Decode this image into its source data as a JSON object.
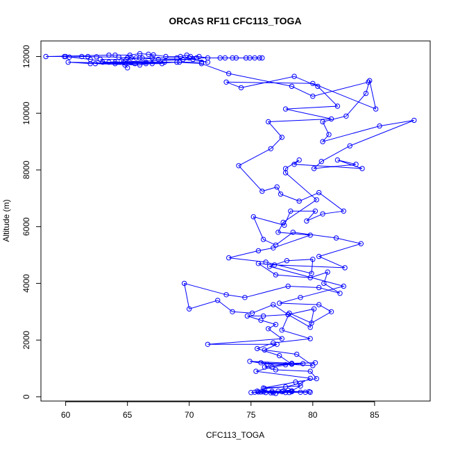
{
  "chart_data": {
    "type": "line",
    "title": "ORCAS RF11 CFC113_TOGA",
    "xlabel": "CFC113_TOGA",
    "ylabel": "Altitude (m)",
    "xlim": [
      58,
      89.5
    ],
    "ylim": [
      -150,
      12550
    ],
    "xticks": [
      60,
      65,
      70,
      75,
      80,
      85
    ],
    "yticks": [
      0,
      2000,
      4000,
      6000,
      8000,
      10000,
      12000
    ],
    "grid": false,
    "markers": "open-circle",
    "series_color": "#0000ff",
    "series": [
      {
        "points": [
          [
            77.0,
            120
          ],
          [
            76.2,
            150
          ],
          [
            75.3,
            160
          ],
          [
            77.8,
            150
          ],
          [
            75.6,
            170
          ],
          [
            76.8,
            140
          ],
          [
            76.0,
            175
          ],
          [
            79.4,
            160
          ],
          [
            76.6,
            140
          ],
          [
            78.1,
            150
          ],
          [
            75.0,
            150
          ],
          [
            79.8,
            160
          ],
          [
            77.5,
            180
          ],
          [
            78.3,
            210
          ],
          [
            79.0,
            380
          ],
          [
            76.0,
            310
          ],
          [
            78.6,
            520
          ],
          [
            80.3,
            640
          ],
          [
            79.8,
            900
          ],
          [
            77.0,
            950
          ],
          [
            76.1,
            1050
          ],
          [
            78.3,
            1180
          ],
          [
            80.2,
            1200
          ],
          [
            76.3,
            1150
          ],
          [
            74.9,
            1250
          ],
          [
            79.2,
            1170
          ],
          [
            77.8,
            1130
          ],
          [
            75.8,
            1200
          ],
          [
            80.0,
            1100
          ],
          [
            78.7,
            1500
          ],
          [
            76.1,
            1650
          ],
          [
            77.1,
            1850
          ],
          [
            71.5,
            1850
          ],
          [
            77.5,
            2050
          ],
          [
            76.4,
            2400
          ],
          [
            77.0,
            2550
          ],
          [
            75.8,
            2700
          ],
          [
            74.7,
            2850
          ],
          [
            76.0,
            2850
          ],
          [
            78.0,
            2900
          ],
          [
            79.8,
            2450
          ],
          [
            80.1,
            3100
          ],
          [
            78.0,
            2900
          ],
          [
            76.8,
            3250
          ],
          [
            75.1,
            2950
          ],
          [
            73.5,
            3000
          ],
          [
            72.3,
            3400
          ],
          [
            70.0,
            3100
          ],
          [
            69.6,
            4000
          ],
          [
            73.0,
            3600
          ],
          [
            74.5,
            3500
          ],
          [
            78.0,
            3900
          ],
          [
            80.5,
            3850
          ],
          [
            82.2,
            3650
          ],
          [
            80.9,
            4000
          ],
          [
            81.2,
            4400
          ],
          [
            79.8,
            4200
          ],
          [
            77.0,
            4300
          ],
          [
            75.6,
            4700
          ],
          [
            76.9,
            4650
          ],
          [
            82.6,
            4550
          ],
          [
            80.5,
            4950
          ],
          [
            83.9,
            5400
          ],
          [
            81.9,
            5600
          ],
          [
            78.4,
            5800
          ],
          [
            77.0,
            5350
          ],
          [
            76.0,
            5550
          ],
          [
            75.2,
            6350
          ],
          [
            77.7,
            6050
          ],
          [
            78.2,
            6550
          ],
          [
            80.2,
            6550
          ],
          [
            79.5,
            6200
          ],
          [
            80.8,
            6450
          ],
          [
            82.5,
            6550
          ],
          [
            80.5,
            7200
          ],
          [
            78.9,
            6900
          ],
          [
            77.4,
            7150
          ],
          [
            77.1,
            7400
          ],
          [
            75.9,
            7250
          ],
          [
            74.0,
            8150
          ],
          [
            76.6,
            8750
          ],
          [
            77.5,
            9150
          ],
          [
            76.4,
            9700
          ],
          [
            81.5,
            9800
          ],
          [
            77.8,
            10150
          ],
          [
            82.0,
            10250
          ],
          [
            80.4,
            10950
          ],
          [
            78.5,
            11300
          ],
          [
            74.2,
            10900
          ],
          [
            73.0,
            11100
          ],
          [
            80.0,
            11050
          ],
          [
            85.1,
            10150
          ],
          [
            84.6,
            11150
          ],
          [
            84.3,
            10700
          ],
          [
            82.7,
            9900
          ],
          [
            80.8,
            9700
          ],
          [
            81.3,
            9250
          ],
          [
            80.8,
            9000
          ],
          [
            85.4,
            9550
          ],
          [
            88.2,
            9750
          ],
          [
            83.0,
            8850
          ],
          [
            80.7,
            8300
          ],
          [
            80.1,
            8050
          ],
          [
            83.5,
            8200
          ],
          [
            82.0,
            8350
          ],
          [
            84.0,
            8050
          ],
          [
            78.5,
            8200
          ],
          [
            78.9,
            8350
          ],
          [
            77.8,
            8050
          ],
          [
            77.8,
            7900
          ],
          [
            80.3,
            6950
          ],
          [
            77.6,
            6150
          ],
          [
            77.2,
            5800
          ],
          [
            79.8,
            5700
          ],
          [
            76.8,
            5250
          ],
          [
            75.6,
            5150
          ],
          [
            73.2,
            4900
          ],
          [
            76.2,
            4750
          ],
          [
            79.9,
            4350
          ],
          [
            80.0,
            4850
          ],
          [
            77.9,
            4800
          ],
          [
            76.5,
            4600
          ],
          [
            82.5,
            3900
          ],
          [
            79.0,
            3500
          ],
          [
            77.3,
            3300
          ],
          [
            80.5,
            3250
          ],
          [
            81.5,
            3000
          ],
          [
            79.9,
            2600
          ],
          [
            78.1,
            2950
          ],
          [
            77.5,
            2350
          ],
          [
            79.8,
            2050
          ],
          [
            76.8,
            1900
          ],
          [
            75.5,
            1700
          ],
          [
            77.3,
            1450
          ],
          [
            78.3,
            1150
          ],
          [
            76.7,
            1050
          ],
          [
            75.4,
            900
          ],
          [
            79.8,
            650
          ],
          [
            79.0,
            480
          ],
          [
            77.8,
            350
          ],
          [
            76.1,
            290
          ],
          [
            75.5,
            200
          ],
          [
            77.6,
            200
          ],
          [
            78.0,
            230
          ],
          [
            79.0,
            160
          ],
          [
            75.8,
            170
          ],
          [
            76.7,
            190
          ],
          [
            77.2,
            200
          ],
          [
            79.7,
            180
          ],
          [
            78.3,
            180
          ]
        ]
      },
      {
        "points": [
          [
            65.0,
            11600
          ],
          [
            64.5,
            11850
          ],
          [
            66.5,
            11800
          ],
          [
            64.8,
            11700
          ],
          [
            63.5,
            11800
          ],
          [
            62.0,
            11750
          ],
          [
            60.2,
            11800
          ],
          [
            65.6,
            11750
          ],
          [
            67.8,
            11750
          ],
          [
            63.0,
            11800
          ],
          [
            71.0,
            11800
          ],
          [
            69.2,
            11800
          ],
          [
            62.4,
            11750
          ],
          [
            66.0,
            11700
          ],
          [
            66.5,
            11750
          ],
          [
            68.0,
            11800
          ],
          [
            64.0,
            11800
          ],
          [
            70.3,
            11900
          ],
          [
            71.5,
            11800
          ],
          [
            70.0,
            11950
          ],
          [
            69.0,
            11950
          ],
          [
            67.0,
            11950
          ],
          [
            66.2,
            11950
          ],
          [
            65.7,
            11950
          ],
          [
            65.3,
            11950
          ],
          [
            65.0,
            11950
          ],
          [
            64.3,
            11980
          ],
          [
            62.5,
            11990
          ],
          [
            61.8,
            12000
          ],
          [
            61.3,
            12000
          ],
          [
            60.3,
            11980
          ],
          [
            59.9,
            12000
          ],
          [
            58.4,
            12000
          ],
          [
            63.5,
            12050
          ],
          [
            64.0,
            12050
          ],
          [
            65.2,
            12050
          ],
          [
            66.0,
            12100
          ],
          [
            66.7,
            12080
          ],
          [
            67.1,
            12060
          ],
          [
            68.1,
            12000
          ],
          [
            69.3,
            12000
          ],
          [
            69.8,
            12050
          ],
          [
            70.1,
            12000
          ],
          [
            70.8,
            12000
          ],
          [
            71.5,
            11950
          ],
          [
            72.5,
            11950
          ],
          [
            73.5,
            11950
          ],
          [
            74.6,
            11950
          ],
          [
            75.3,
            11950
          ],
          [
            75.9,
            11950
          ],
          [
            75.7,
            11950
          ],
          [
            74.9,
            11950
          ],
          [
            73.8,
            11950
          ],
          [
            72.9,
            11950
          ],
          [
            70.6,
            11950
          ],
          [
            69.5,
            11900
          ],
          [
            67.5,
            11900
          ],
          [
            66.0,
            11950
          ],
          [
            64.9,
            11900
          ],
          [
            62.8,
            11900
          ]
        ]
      },
      {
        "points": [
          [
            60.0,
            12000
          ],
          [
            62.0,
            11900
          ],
          [
            64.0,
            11750
          ],
          [
            67.0,
            11750
          ],
          [
            69.0,
            11800
          ],
          [
            71.0,
            11750
          ],
          [
            73.2,
            11400
          ],
          [
            78.3,
            10950
          ],
          [
            80.0,
            10600
          ],
          [
            84.5,
            11100
          ]
        ]
      }
    ]
  }
}
